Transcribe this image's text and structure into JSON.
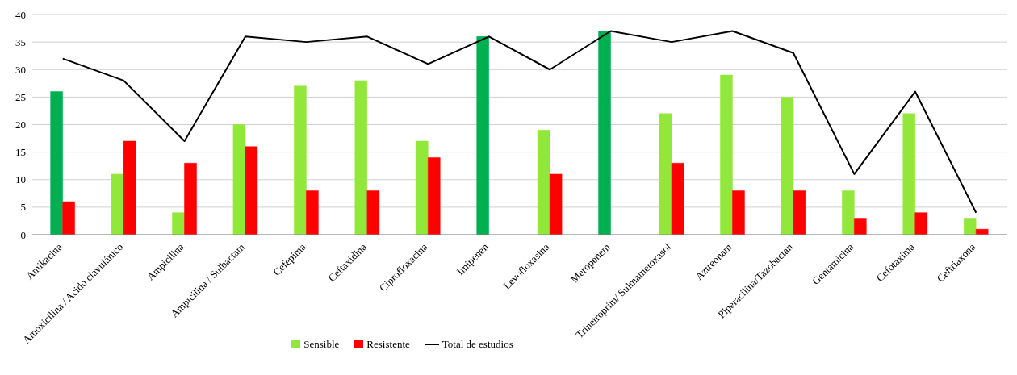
{
  "chart_data": {
    "type": "bar",
    "categories": [
      "Amikacina",
      "Amoxicilina / Acido clavulánico",
      "Ampicilina",
      "Ampicilina / Sulbactam",
      "Cefepima",
      "Ceftaxidina",
      "Ciprofloxacina",
      "Imipenen",
      "Levofloxasina",
      "Meropenem",
      "Trinetroprim/ Sulmametoxasol",
      "Aztreonam",
      "Piperacilina/Tazobactan",
      "Gentamicina",
      "Cefotaxima",
      "Ceftriaxona"
    ],
    "series": [
      {
        "name": "Sensible",
        "color": "#92e83a",
        "colors": [
          "#00b050",
          "#92e83a",
          "#92e83a",
          "#92e83a",
          "#92e83a",
          "#92e83a",
          "#92e83a",
          "#00b050",
          "#92e83a",
          "#00b050",
          "#92e83a",
          "#92e83a",
          "#92e83a",
          "#92e83a",
          "#92e83a",
          "#92e83a"
        ],
        "values": [
          26,
          11,
          4,
          20,
          27,
          28,
          17,
          36,
          19,
          37,
          22,
          29,
          25,
          8,
          22,
          3
        ]
      },
      {
        "name": "Resistente",
        "color": "#ff0000",
        "values": [
          6,
          17,
          13,
          16,
          8,
          8,
          14,
          null,
          11,
          null,
          13,
          8,
          8,
          3,
          4,
          1
        ]
      },
      {
        "name": "Total de estudios",
        "type": "line",
        "color": "#000000",
        "values": [
          32,
          28,
          17,
          36,
          35,
          36,
          31,
          36,
          30,
          37,
          35,
          37,
          33,
          11,
          26,
          4
        ]
      }
    ],
    "ylim": [
      0,
      40
    ],
    "yticks": [
      0,
      5,
      10,
      15,
      20,
      25,
      30,
      35,
      40
    ],
    "grid": "y",
    "legend": "bottom",
    "marker": "none"
  }
}
